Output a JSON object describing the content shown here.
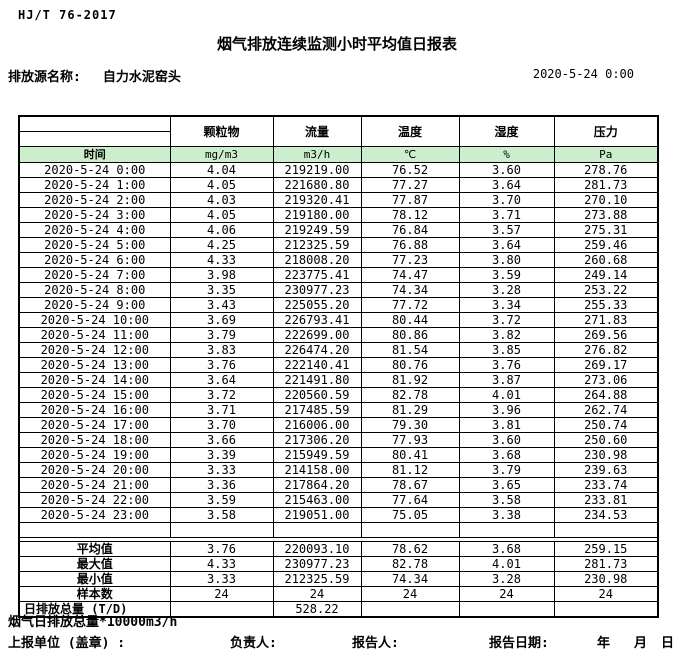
{
  "page": {
    "standard_code": "HJ/T  76-2017",
    "title": "烟气排放连续监测小时平均值日报表",
    "source_label": "排放源名称:",
    "source_name": "自力水泥窑头",
    "datetime": "2020-5-24 0:00"
  },
  "table": {
    "time_header": "时间",
    "columns": [
      "颗粒物",
      "流量",
      "温度",
      "湿度",
      "压力"
    ],
    "units": [
      "mg/m3",
      "m3/h",
      "℃",
      "%",
      "Pa"
    ],
    "rows": [
      {
        "time": "2020-5-24 0:00",
        "values": [
          "4.04",
          "219219.00",
          "76.52",
          "3.60",
          "278.76"
        ]
      },
      {
        "time": "2020-5-24 1:00",
        "values": [
          "4.05",
          "221680.80",
          "77.27",
          "3.64",
          "281.73"
        ]
      },
      {
        "time": "2020-5-24 2:00",
        "values": [
          "4.03",
          "219320.41",
          "77.87",
          "3.70",
          "270.10"
        ]
      },
      {
        "time": "2020-5-24 3:00",
        "values": [
          "4.05",
          "219180.00",
          "78.12",
          "3.71",
          "273.88"
        ]
      },
      {
        "time": "2020-5-24 4:00",
        "values": [
          "4.06",
          "219249.59",
          "76.84",
          "3.57",
          "275.31"
        ]
      },
      {
        "time": "2020-5-24 5:00",
        "values": [
          "4.25",
          "212325.59",
          "76.88",
          "3.64",
          "259.46"
        ]
      },
      {
        "time": "2020-5-24 6:00",
        "values": [
          "4.33",
          "218008.20",
          "77.23",
          "3.80",
          "260.68"
        ]
      },
      {
        "time": "2020-5-24 7:00",
        "values": [
          "3.98",
          "223775.41",
          "74.47",
          "3.59",
          "249.14"
        ]
      },
      {
        "time": "2020-5-24 8:00",
        "values": [
          "3.35",
          "230977.23",
          "74.34",
          "3.28",
          "253.22"
        ]
      },
      {
        "time": "2020-5-24 9:00",
        "values": [
          "3.43",
          "225055.20",
          "77.72",
          "3.34",
          "255.33"
        ]
      },
      {
        "time": "2020-5-24 10:00",
        "values": [
          "3.69",
          "226793.41",
          "80.44",
          "3.72",
          "271.83"
        ]
      },
      {
        "time": "2020-5-24 11:00",
        "values": [
          "3.79",
          "222699.00",
          "80.86",
          "3.82",
          "269.56"
        ]
      },
      {
        "time": "2020-5-24 12:00",
        "values": [
          "3.83",
          "226474.20",
          "81.54",
          "3.85",
          "276.82"
        ]
      },
      {
        "time": "2020-5-24 13:00",
        "values": [
          "3.76",
          "222140.41",
          "80.76",
          "3.76",
          "269.17"
        ]
      },
      {
        "time": "2020-5-24 14:00",
        "values": [
          "3.64",
          "221491.80",
          "81.92",
          "3.87",
          "273.06"
        ]
      },
      {
        "time": "2020-5-24 15:00",
        "values": [
          "3.72",
          "220560.59",
          "82.78",
          "4.01",
          "264.88"
        ]
      },
      {
        "time": "2020-5-24 16:00",
        "values": [
          "3.71",
          "217485.59",
          "81.29",
          "3.96",
          "262.74"
        ]
      },
      {
        "time": "2020-5-24 17:00",
        "values": [
          "3.70",
          "216006.00",
          "79.30",
          "3.81",
          "250.74"
        ]
      },
      {
        "time": "2020-5-24 18:00",
        "values": [
          "3.66",
          "217306.20",
          "77.93",
          "3.60",
          "250.60"
        ]
      },
      {
        "time": "2020-5-24 19:00",
        "values": [
          "3.39",
          "215949.59",
          "80.41",
          "3.68",
          "230.98"
        ]
      },
      {
        "time": "2020-5-24 20:00",
        "values": [
          "3.33",
          "214158.00",
          "81.12",
          "3.79",
          "239.63"
        ]
      },
      {
        "time": "2020-5-24 21:00",
        "values": [
          "3.36",
          "217864.20",
          "78.67",
          "3.65",
          "233.74"
        ]
      },
      {
        "time": "2020-5-24 22:00",
        "values": [
          "3.59",
          "215463.00",
          "77.64",
          "3.58",
          "233.81"
        ]
      },
      {
        "time": "2020-5-24 23:00",
        "values": [
          "3.58",
          "219051.00",
          "75.05",
          "3.38",
          "234.53"
        ]
      }
    ],
    "summary": [
      {
        "label": "平均值",
        "values": [
          "3.76",
          "220093.10",
          "78.62",
          "3.68",
          "259.15"
        ]
      },
      {
        "label": "最大值",
        "values": [
          "4.33",
          "230977.23",
          "82.78",
          "4.01",
          "281.73"
        ]
      },
      {
        "label": "最小值",
        "values": [
          "3.33",
          "212325.59",
          "74.34",
          "3.28",
          "230.98"
        ]
      },
      {
        "label": "样本数",
        "values": [
          "24",
          "24",
          "24",
          "24",
          "24"
        ]
      },
      {
        "label": "日排放总量 (T/D)",
        "values": [
          "",
          "528.22",
          "",
          "",
          ""
        ]
      }
    ]
  },
  "footer": {
    "note": "烟气日排放总量*10000m3/h",
    "report_unit_label": "上报单位 (盖章) :",
    "responsible_label": "负责人:",
    "reporter_label": "报告人:",
    "report_date_label": "报告日期:",
    "year_label": "年",
    "month_label": "月",
    "day_label": "日"
  },
  "colors": {
    "header_green": "#CCEECC"
  }
}
